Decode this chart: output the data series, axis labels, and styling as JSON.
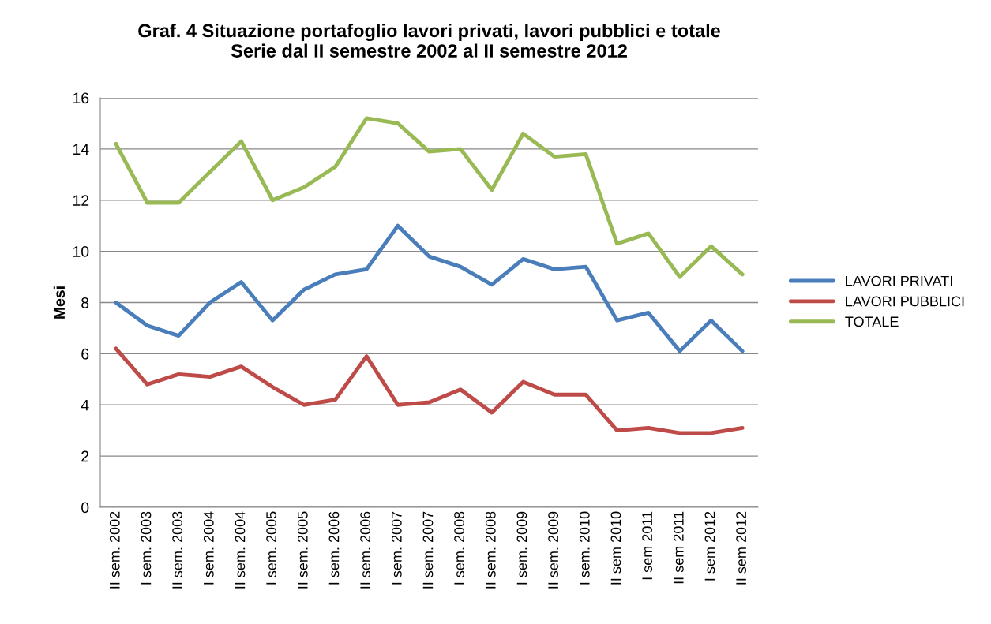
{
  "chart_data": {
    "type": "line",
    "title": "Graf. 4 Situazione portafoglio lavori privati, lavori pubblici e totale\nSerie dal II semestre 2002 al II semestre 2012",
    "ylabel": "Mesi",
    "categories": [
      "II sem. 2002",
      "I sem. 2003",
      "II sem. 2003",
      "I sem. 2004",
      "II sem. 2004",
      "I sem. 2005",
      "II sem. 2005",
      "I sem. 2006",
      "II sem. 2006",
      "I sem. 2007",
      "II sem. 2007",
      "I sem. 2008",
      "II sem. 2008",
      "I sem. 2009",
      "II sem. 2009",
      "I sem. 2010",
      "II sem 2010",
      "I sem 2011",
      "II sem 2011",
      "I sem 2012",
      "II sem 2012"
    ],
    "series": [
      {
        "name": "LAVORI PRIVATI",
        "color": "#4a7ebb",
        "values": [
          8.0,
          7.1,
          6.7,
          8.0,
          8.8,
          7.3,
          8.5,
          9.1,
          9.3,
          11.0,
          9.8,
          9.4,
          8.7,
          9.7,
          9.3,
          9.4,
          7.3,
          7.6,
          6.1,
          7.3,
          6.1
        ]
      },
      {
        "name": "LAVORI PUBBLICI",
        "color": "#be4b48",
        "values": [
          6.2,
          4.8,
          5.2,
          5.1,
          5.5,
          4.7,
          4.0,
          4.2,
          5.9,
          4.0,
          4.1,
          4.6,
          3.7,
          4.9,
          4.4,
          4.4,
          3.0,
          3.1,
          2.9,
          2.9,
          3.1
        ]
      },
      {
        "name": "TOTALE",
        "color": "#98b954",
        "values": [
          14.2,
          11.9,
          11.9,
          13.1,
          14.3,
          12.0,
          12.5,
          13.3,
          15.2,
          15.0,
          13.9,
          14.0,
          12.4,
          14.6,
          13.7,
          13.8,
          10.3,
          10.7,
          9.0,
          10.2,
          9.1
        ]
      }
    ],
    "ylim": [
      0,
      16
    ],
    "yticks": [
      0,
      2,
      4,
      6,
      8,
      10,
      12,
      14,
      16
    ],
    "grid": "y",
    "legend": "right",
    "marker": "none",
    "line_style": "solid"
  }
}
